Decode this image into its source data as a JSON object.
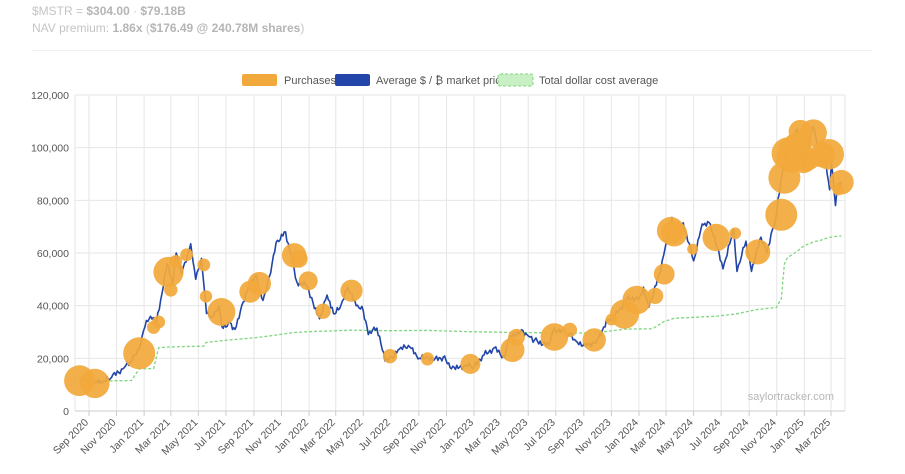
{
  "header": {
    "ticker": "$MSTR",
    "eq": " = ",
    "price": "$304.00",
    "sep": " · ",
    "mcap": "$79.18B",
    "nav_label": "NAV premium: ",
    "nav_mult": "1.86x",
    "nav_open": " (",
    "nav_value": "$176.49 @ 240.78M shares",
    "nav_close": ")"
  },
  "watermark": "saylortracker.com",
  "colors": {
    "purchases": "#f2a93b",
    "market_price": "#2145a8",
    "cost_average": "#7fd67f",
    "grid": "#e6e6e6"
  },
  "chart_data": {
    "type": "line",
    "legend": [
      "Purchases",
      "Average $ / ₿ market price",
      "Total dollar cost average"
    ],
    "legend_placement": "top-center",
    "ylim": [
      0,
      120000
    ],
    "yticks": [
      0,
      20000,
      40000,
      60000,
      80000,
      100000,
      120000
    ],
    "ytick_labels": [
      "0",
      "20,000",
      "40,000",
      "60,000",
      "80,000",
      "100,000",
      "120,000"
    ],
    "xlim": [
      "2020-08-01",
      "2025-04-01"
    ],
    "xticks": [
      "2020-09",
      "2020-11",
      "2021-01",
      "2021-03",
      "2021-05",
      "2021-07",
      "2021-09",
      "2021-11",
      "2022-01",
      "2022-03",
      "2022-05",
      "2022-07",
      "2022-09",
      "2022-11",
      "2023-01",
      "2023-03",
      "2023-05",
      "2023-07",
      "2023-09",
      "2023-11",
      "2024-01",
      "2024-03",
      "2024-05",
      "2024-07",
      "2024-09",
      "2024-11",
      "2025-01",
      "2025-03"
    ],
    "xtick_labels": [
      "Sep 2020",
      "Nov 2020",
      "Jan 2021",
      "Mar 2021",
      "May 2021",
      "Jul 2021",
      "Sep 2021",
      "Nov 2021",
      "Jan 2022",
      "Mar 2022",
      "May 2022",
      "Jul 2022",
      "Sep 2022",
      "Nov 2022",
      "Jan 2023",
      "Mar 2023",
      "May 2023",
      "Jul 2023",
      "Sep 2023",
      "Nov 2023",
      "Jan 2024",
      "Mar 2024",
      "May 2024",
      "Jul 2024",
      "Sep 2024",
      "Nov 2024",
      "Jan 2025",
      "Mar 2025"
    ],
    "grid": true,
    "series": [
      {
        "name": "Average $ / ₿ market price",
        "points": [
          [
            "2020-08-11",
            11500
          ],
          [
            "2020-09-01",
            11700
          ],
          [
            "2020-09-15",
            10700
          ],
          [
            "2020-10-01",
            10600
          ],
          [
            "2020-10-21",
            12800
          ],
          [
            "2020-11-15",
            16000
          ],
          [
            "2020-12-05",
            19000
          ],
          [
            "2020-12-21",
            23500
          ],
          [
            "2021-01-03",
            32000
          ],
          [
            "2021-01-15",
            36000
          ],
          [
            "2021-01-28",
            33000
          ],
          [
            "2021-02-10",
            45000
          ],
          [
            "2021-02-21",
            56000
          ],
          [
            "2021-03-05",
            48000
          ],
          [
            "2021-03-13",
            60000
          ],
          [
            "2021-03-25",
            52000
          ],
          [
            "2021-04-14",
            63500
          ],
          [
            "2021-04-25",
            50000
          ],
          [
            "2021-05-08",
            58000
          ],
          [
            "2021-05-19",
            37000
          ],
          [
            "2021-06-01",
            36000
          ],
          [
            "2021-06-15",
            40000
          ],
          [
            "2021-06-22",
            32000
          ],
          [
            "2021-07-10",
            33500
          ],
          [
            "2021-07-21",
            31000
          ],
          [
            "2021-08-05",
            40000
          ],
          [
            "2021-08-23",
            49000
          ],
          [
            "2021-09-06",
            51500
          ],
          [
            "2021-09-21",
            42000
          ],
          [
            "2021-10-05",
            51000
          ],
          [
            "2021-10-20",
            64000
          ],
          [
            "2021-11-10",
            68000
          ],
          [
            "2021-11-25",
            57000
          ],
          [
            "2021-12-05",
            49000
          ],
          [
            "2021-12-28",
            47500
          ],
          [
            "2022-01-10",
            41000
          ],
          [
            "2022-01-24",
            35000
          ],
          [
            "2022-02-10",
            44000
          ],
          [
            "2022-02-24",
            37000
          ],
          [
            "2022-03-10",
            39000
          ],
          [
            "2022-03-28",
            47000
          ],
          [
            "2022-04-15",
            40000
          ],
          [
            "2022-05-01",
            38000
          ],
          [
            "2022-05-12",
            29000
          ],
          [
            "2022-05-31",
            31500
          ],
          [
            "2022-06-18",
            19000
          ],
          [
            "2022-07-05",
            20000
          ],
          [
            "2022-07-20",
            23500
          ],
          [
            "2022-08-12",
            24300
          ],
          [
            "2022-08-30",
            19800
          ],
          [
            "2022-09-15",
            20000
          ],
          [
            "2022-10-01",
            19200
          ],
          [
            "2022-10-25",
            20500
          ],
          [
            "2022-11-09",
            16500
          ],
          [
            "2022-11-21",
            15800
          ],
          [
            "2022-12-15",
            17500
          ],
          [
            "2023-01-01",
            16500
          ],
          [
            "2023-01-20",
            21000
          ],
          [
            "2023-02-15",
            24000
          ],
          [
            "2023-03-10",
            20200
          ],
          [
            "2023-03-20",
            28000
          ],
          [
            "2023-04-14",
            30500
          ],
          [
            "2023-04-28",
            29000
          ],
          [
            "2023-05-15",
            27000
          ],
          [
            "2023-06-15",
            25000
          ],
          [
            "2023-06-25",
            30500
          ],
          [
            "2023-07-15",
            31000
          ],
          [
            "2023-08-01",
            29500
          ],
          [
            "2023-08-18",
            26000
          ],
          [
            "2023-09-11",
            25000
          ],
          [
            "2023-09-30",
            27000
          ],
          [
            "2023-10-24",
            34500
          ],
          [
            "2023-11-15",
            37500
          ],
          [
            "2023-12-08",
            43500
          ],
          [
            "2023-12-31",
            42300
          ],
          [
            "2024-01-11",
            47000
          ],
          [
            "2024-01-23",
            39500
          ],
          [
            "2024-02-15",
            52000
          ],
          [
            "2024-02-28",
            62000
          ],
          [
            "2024-03-14",
            73500
          ],
          [
            "2024-03-22",
            64000
          ],
          [
            "2024-04-08",
            71500
          ],
          [
            "2024-05-01",
            57000
          ],
          [
            "2024-05-20",
            71000
          ],
          [
            "2024-06-07",
            71000
          ],
          [
            "2024-07-05",
            54000
          ],
          [
            "2024-07-29",
            69000
          ],
          [
            "2024-08-05",
            53000
          ],
          [
            "2024-08-25",
            64500
          ],
          [
            "2024-09-06",
            53000
          ],
          [
            "2024-09-27",
            66000
          ],
          [
            "2024-10-10",
            60000
          ],
          [
            "2024-10-29",
            72500
          ],
          [
            "2024-11-13",
            90000
          ],
          [
            "2024-11-22",
            99000
          ],
          [
            "2024-12-05",
            100500
          ],
          [
            "2024-12-17",
            107000
          ],
          [
            "2024-12-30",
            92000
          ],
          [
            "2025-01-20",
            108000
          ],
          [
            "2025-02-01",
            100000
          ],
          [
            "2025-02-15",
            96000
          ],
          [
            "2025-02-26",
            84000
          ],
          [
            "2025-03-02",
            94000
          ],
          [
            "2025-03-11",
            78000
          ],
          [
            "2025-03-15",
            85000
          ],
          [
            "2025-03-24",
            87000
          ]
        ]
      },
      {
        "name": "Total dollar cost average",
        "points": [
          [
            "2020-08-11",
            11650
          ],
          [
            "2020-09-14",
            11400
          ],
          [
            "2020-12-04",
            11600
          ],
          [
            "2020-12-21",
            16000
          ],
          [
            "2021-01-22",
            16100
          ],
          [
            "2021-02-02",
            24000
          ],
          [
            "2021-02-24",
            24300
          ],
          [
            "2021-04-05",
            24500
          ],
          [
            "2021-05-13",
            24600
          ],
          [
            "2021-05-18",
            26000
          ],
          [
            "2021-06-21",
            26700
          ],
          [
            "2021-08-24",
            27700
          ],
          [
            "2021-09-13",
            28000
          ],
          [
            "2021-11-29",
            29800
          ],
          [
            "2021-12-30",
            30100
          ],
          [
            "2022-04-05",
            30700
          ],
          [
            "2022-06-29",
            30500
          ],
          [
            "2022-09-20",
            30600
          ],
          [
            "2022-12-24",
            30100
          ],
          [
            "2023-03-27",
            29800
          ],
          [
            "2023-06-28",
            29700
          ],
          [
            "2023-09-24",
            29600
          ],
          [
            "2023-11-30",
            31100
          ],
          [
            "2024-01-31",
            31200
          ],
          [
            "2024-02-26",
            34000
          ],
          [
            "2024-03-19",
            35200
          ],
          [
            "2024-06-20",
            36000
          ],
          [
            "2024-08-01",
            36800
          ],
          [
            "2024-09-20",
            38600
          ],
          [
            "2024-10-31",
            39300
          ],
          [
            "2024-11-11",
            42700
          ],
          [
            "2024-11-18",
            55900
          ],
          [
            "2024-11-25",
            58300
          ],
          [
            "2024-12-16",
            60600
          ],
          [
            "2024-12-31",
            62700
          ],
          [
            "2025-01-21",
            64200
          ],
          [
            "2025-02-10",
            65000
          ],
          [
            "2025-02-24",
            65900
          ],
          [
            "2025-03-17",
            66400
          ],
          [
            "2025-03-24",
            66400
          ]
        ]
      },
      {
        "name": "Purchases",
        "points": [
          [
            "2020-08-11",
            11500,
            21454
          ],
          [
            "2020-09-14",
            10500,
            16796
          ],
          [
            "2020-12-21",
            21900,
            29646
          ],
          [
            "2021-01-22",
            31800,
            314
          ],
          [
            "2021-02-02",
            33800,
            295
          ],
          [
            "2021-02-24",
            52800,
            19452
          ],
          [
            "2021-03-01",
            46000,
            328
          ],
          [
            "2021-03-12",
            56800,
            262
          ],
          [
            "2021-04-05",
            59300,
            253
          ],
          [
            "2021-05-13",
            55500,
            271
          ],
          [
            "2021-05-18",
            43500,
            229
          ],
          [
            "2021-06-21",
            37600,
            13005
          ],
          [
            "2021-08-24",
            45300,
            3907
          ],
          [
            "2021-09-13",
            48400,
            5050
          ],
          [
            "2021-11-29",
            59100,
            7002
          ],
          [
            "2021-12-09",
            57800,
            1434
          ],
          [
            "2021-12-30",
            49400,
            1914
          ],
          [
            "2022-02-01",
            37900,
            660
          ],
          [
            "2022-04-05",
            45700,
            4167
          ],
          [
            "2022-06-29",
            20800,
            480
          ],
          [
            "2022-09-20",
            19800,
            301
          ],
          [
            "2022-12-24",
            17900,
            2500
          ],
          [
            "2023-03-27",
            23200,
            6455
          ],
          [
            "2023-04-05",
            28000,
            1045
          ],
          [
            "2023-06-28",
            28100,
            12333
          ],
          [
            "2023-08-01",
            30800,
            467
          ],
          [
            "2023-09-24",
            27000,
            5445
          ],
          [
            "2023-11-01",
            34700,
            155
          ],
          [
            "2023-11-30",
            36800,
            16130
          ],
          [
            "2023-12-27",
            42100,
            14620
          ],
          [
            "2024-02-06",
            43700,
            850
          ],
          [
            "2024-02-26",
            52000,
            3000
          ],
          [
            "2024-03-11",
            68500,
            12000
          ],
          [
            "2024-03-19",
            67400,
            9245
          ],
          [
            "2024-04-29",
            61500,
            122
          ],
          [
            "2024-06-20",
            65900,
            11931
          ],
          [
            "2024-08-01",
            67500,
            169
          ],
          [
            "2024-09-20",
            60400,
            7420
          ],
          [
            "2024-11-11",
            74500,
            27200
          ],
          [
            "2024-11-18",
            88600,
            51780
          ],
          [
            "2024-11-25",
            97800,
            55500
          ],
          [
            "2024-12-02",
            95900,
            15400
          ],
          [
            "2024-12-09",
            98800,
            21550
          ],
          [
            "2024-12-16",
            100300,
            15350
          ],
          [
            "2024-12-23",
            106100,
            5262
          ],
          [
            "2024-12-30",
            94000,
            2138
          ],
          [
            "2025-01-06",
            94000,
            1070
          ],
          [
            "2025-01-13",
            95500,
            2530
          ],
          [
            "2025-01-21",
            105600,
            11000
          ],
          [
            "2025-02-10",
            97300,
            7633
          ],
          [
            "2025-02-24",
            97500,
            20356
          ],
          [
            "2025-03-17",
            84000,
            130
          ],
          [
            "2025-03-24",
            86900,
            6911
          ]
        ]
      }
    ]
  }
}
